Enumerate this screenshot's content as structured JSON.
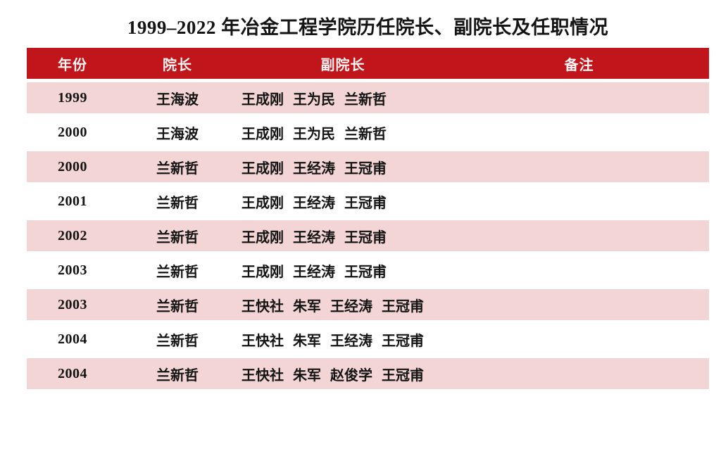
{
  "title": "1999–2022 年冶金工程学院历任院长、副院长及任职情况",
  "colors": {
    "header_bg": "#C0151A",
    "header_fg": "#FFF5F4",
    "row_alt_bg": "#F2D5D4",
    "page_bg": "#FFFFFF",
    "text": "#141414"
  },
  "table": {
    "columns": [
      {
        "key": "year",
        "label": "年份"
      },
      {
        "key": "dean",
        "label": "院长"
      },
      {
        "key": "vice_deans",
        "label": "副院长"
      },
      {
        "key": "note",
        "label": "备注"
      }
    ],
    "rows": [
      {
        "year": "1999",
        "dean": "王海波",
        "vice_deans": "王成刚 王为民 兰新哲",
        "note": ""
      },
      {
        "year": "2000",
        "dean": "王海波",
        "vice_deans": "王成刚 王为民 兰新哲",
        "note": ""
      },
      {
        "year": "2000",
        "dean": "兰新哲",
        "vice_deans": "王成刚 王经涛 王冠甫",
        "note": ""
      },
      {
        "year": "2001",
        "dean": "兰新哲",
        "vice_deans": "王成刚 王经涛 王冠甫",
        "note": ""
      },
      {
        "year": "2002",
        "dean": "兰新哲",
        "vice_deans": "王成刚 王经涛 王冠甫",
        "note": ""
      },
      {
        "year": "2003",
        "dean": "兰新哲",
        "vice_deans": "王成刚 王经涛 王冠甫",
        "note": ""
      },
      {
        "year": "2003",
        "dean": "兰新哲",
        "vice_deans": "王快社 朱军 王经涛 王冠甫",
        "note": ""
      },
      {
        "year": "2004",
        "dean": "兰新哲",
        "vice_deans": "王快社 朱军 王经涛 王冠甫",
        "note": ""
      },
      {
        "year": "2004",
        "dean": "兰新哲",
        "vice_deans": "王快社 朱军 赵俊学 王冠甫",
        "note": ""
      }
    ]
  }
}
